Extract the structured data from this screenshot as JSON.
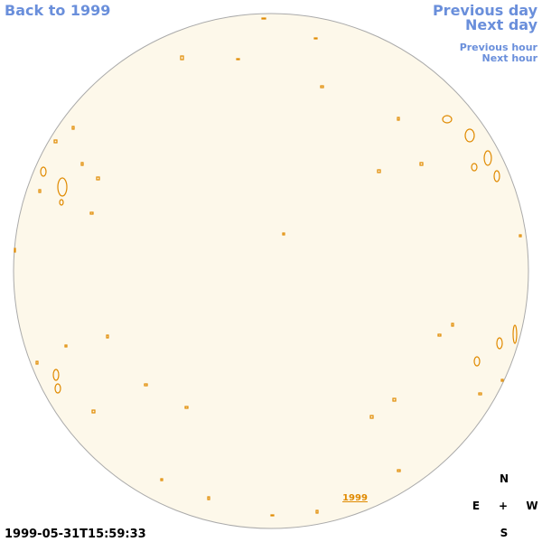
{
  "nav": {
    "back": "Back to 1999",
    "previous_day": "Previous day",
    "next_day": "Next day",
    "previous_hour": "Previous hour",
    "next_hour": "Next hour"
  },
  "image": {
    "year_label": "1999",
    "timestamp": "1999-05-31T15:59:33"
  },
  "compass": {
    "north": "N",
    "east": "E",
    "center": "+",
    "west": "W",
    "south": "S"
  }
}
